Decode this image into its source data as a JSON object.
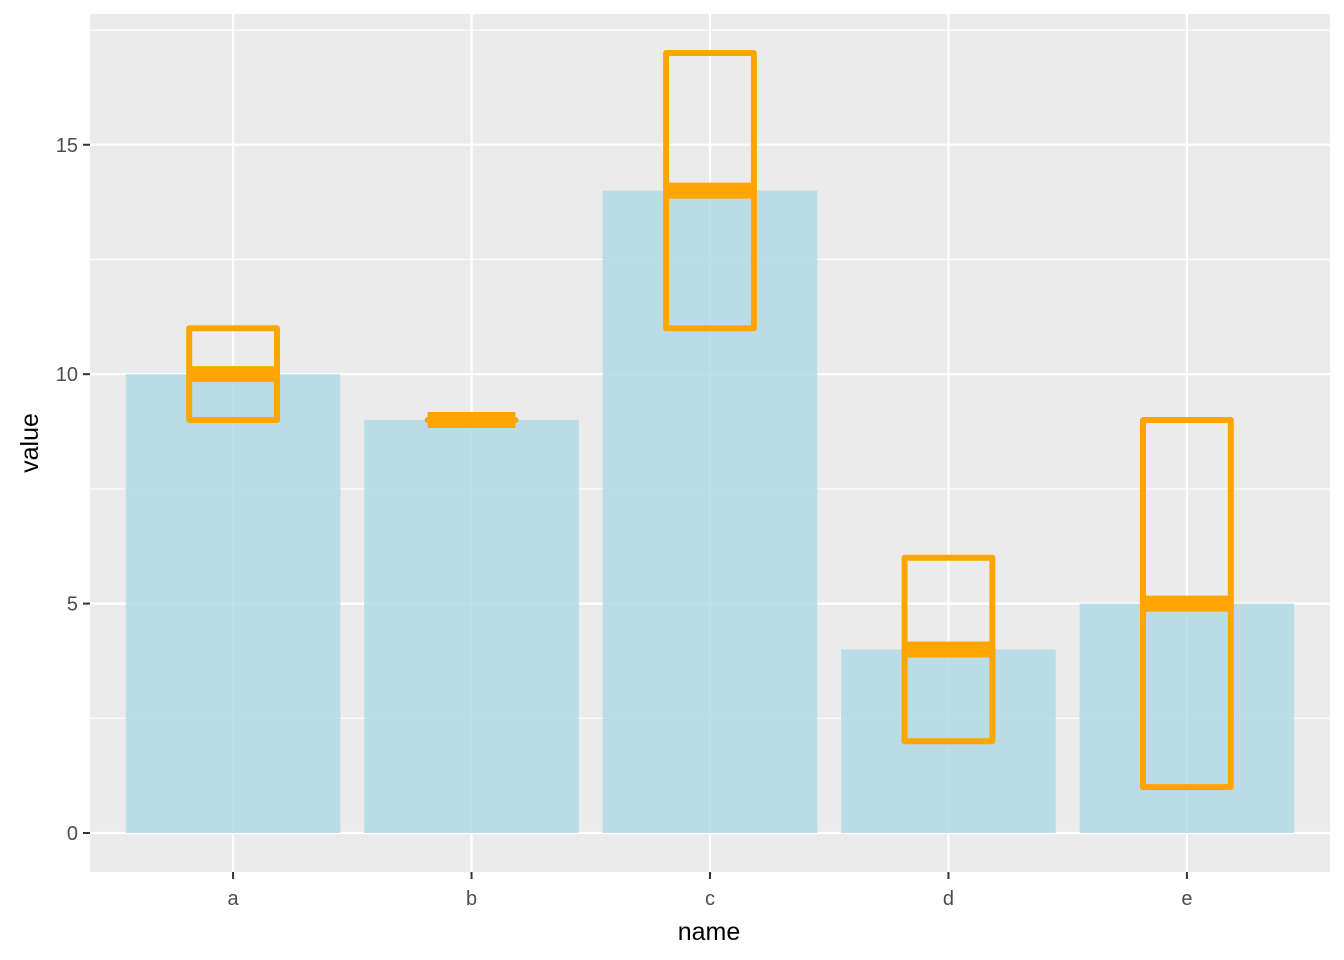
{
  "chart_data": {
    "type": "bar",
    "xlabel": "name",
    "ylabel": "value",
    "categories": [
      "a",
      "b",
      "c",
      "d",
      "e"
    ],
    "values": [
      10,
      9,
      14,
      4,
      5
    ],
    "crossbars": [
      {
        "category": "a",
        "y": 10,
        "ymin": 9,
        "ymax": 11
      },
      {
        "category": "b",
        "y": 9,
        "ymin": 9,
        "ymax": 9
      },
      {
        "category": "c",
        "y": 14,
        "ymin": 11,
        "ymax": 17
      },
      {
        "category": "d",
        "y": 4,
        "ymin": 2,
        "ymax": 6
      },
      {
        "category": "e",
        "y": 5,
        "ymin": 1,
        "ymax": 9
      }
    ],
    "yticks": [
      0,
      5,
      10,
      15
    ],
    "ylim": [
      -0.85,
      17.85
    ],
    "grid": true,
    "colors": {
      "panel_background": "#EBEBEB",
      "grid": "#FFFFFF",
      "bar_fill": "#ADD8E6",
      "bar_opacity": 0.8,
      "crossbar": "#FFA500",
      "tick": "#333333"
    }
  }
}
